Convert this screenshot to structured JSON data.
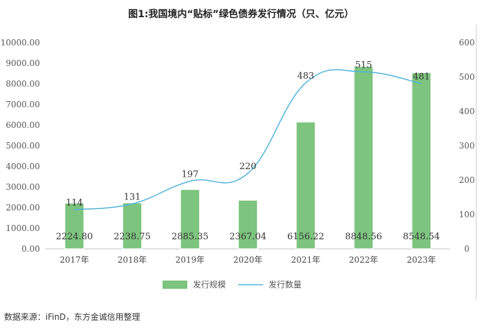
{
  "title": "图1:我国境内“贴标”绿色债券发行情况（只、亿元）",
  "source": "数据来源：iFinD，东方金诚信用整理",
  "colors": {
    "bar": "#7dc47e",
    "bar_border": "#ffffff",
    "line": "#4fb3d9",
    "axis": "#bfbfbf"
  },
  "chart_data": {
    "type": "bar",
    "categories": [
      "2017年",
      "2018年",
      "2019年",
      "2020年",
      "2021年",
      "2022年",
      "2023年"
    ],
    "series": [
      {
        "name": "发行规模",
        "type": "bar",
        "axis": "left",
        "values": [
          2224.8,
          2238.75,
          2885.35,
          2367.04,
          6156.22,
          8848.56,
          8548.54
        ],
        "labels": [
          "2224.80",
          "2238.75",
          "2885.35",
          "2367.04",
          "6156.22",
          "8848.56",
          "8548.54"
        ]
      },
      {
        "name": "发行数量",
        "type": "line",
        "axis": "right",
        "values": [
          114,
          131,
          197,
          220,
          483,
          515,
          481
        ],
        "labels": [
          "114",
          "131",
          "197",
          "220",
          "483",
          "515",
          "481"
        ]
      }
    ],
    "y_left": {
      "min": 0,
      "max": 10000,
      "step": 1000,
      "ticks": [
        "0.00",
        "1000.00",
        "2000.00",
        "3000.00",
        "4000.00",
        "5000.00",
        "6000.00",
        "7000.00",
        "8000.00",
        "9000.00",
        "10000.00"
      ]
    },
    "y_right": {
      "min": 0,
      "max": 600,
      "step": 100,
      "ticks": [
        "0",
        "100",
        "200",
        "300",
        "400",
        "500",
        "600"
      ]
    },
    "legend": {
      "position": "bottom"
    },
    "grid": false
  }
}
